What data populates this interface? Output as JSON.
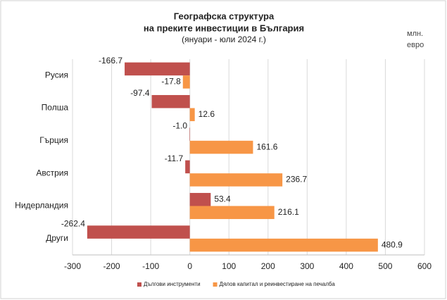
{
  "chart_data": {
    "type": "hbar",
    "title": "Географска структура",
    "subtitle": "на преките инвестиции в България",
    "period": "(януари - юли 2024 г.)",
    "unit": "млн. евро",
    "categories": [
      "Русия",
      "Полша",
      "Гърция",
      "Австрия",
      "Нидерландия",
      "Други"
    ],
    "series": [
      {
        "name": "Дългови инструменти",
        "color": "#c0504d",
        "values": [
          -166.7,
          -97.4,
          -1.0,
          -11.7,
          53.4,
          -262.4
        ],
        "value_labels": [
          "-166.7",
          "-97.4",
          "-1.0",
          "-11.7",
          "53.4",
          "-262.4"
        ]
      },
      {
        "name": "Дялов капитал и реинвестиране на печалба",
        "color": "#f79646",
        "values": [
          -17.8,
          12.6,
          161.6,
          236.7,
          216.1,
          480.9
        ],
        "value_labels": [
          "-17.8",
          "12.6",
          "161.6",
          "236.7",
          "216.1",
          "480.9"
        ]
      }
    ],
    "xlim": [
      -300,
      600
    ],
    "xticks": [
      -300,
      -200,
      -100,
      0,
      100,
      200,
      300,
      400,
      500,
      600
    ],
    "grid": true
  }
}
